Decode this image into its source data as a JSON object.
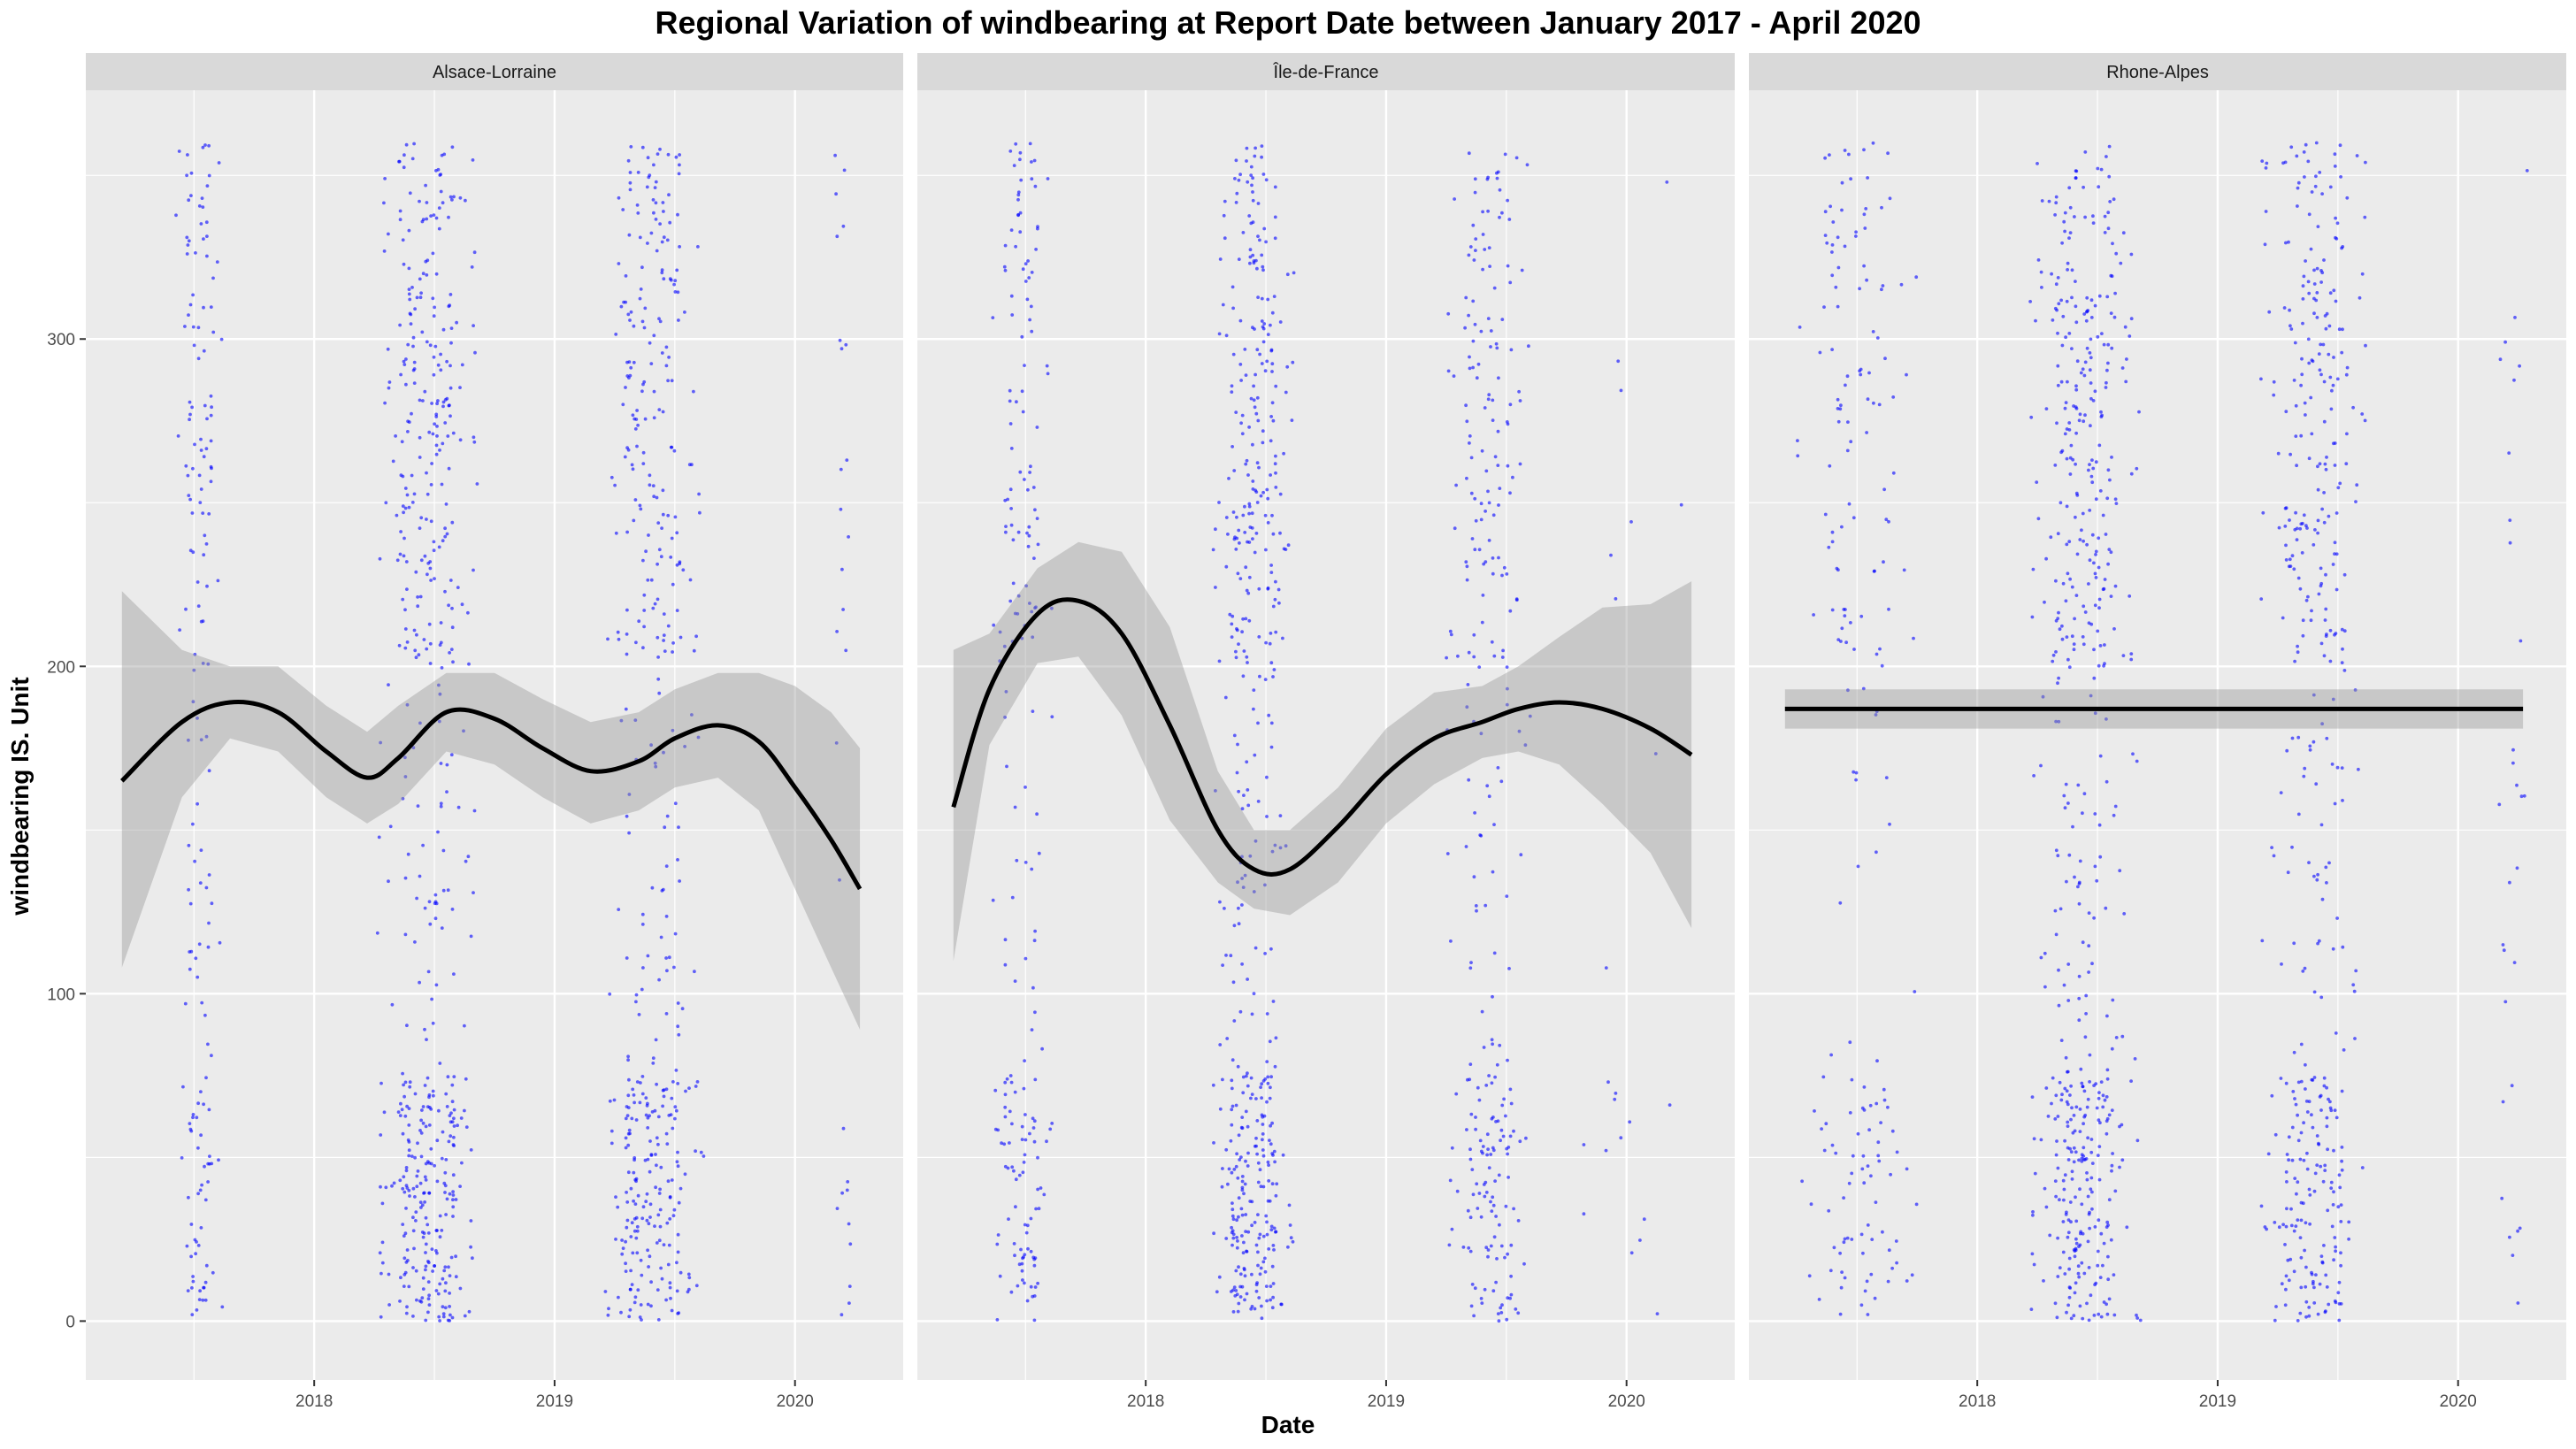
{
  "chart_data": {
    "type": "scatter",
    "title": "Regional Variation of  windbearing  at Report Date between January 2017 - April 2020",
    "xlabel": "Date",
    "ylabel": "windbearing  IS. Unit",
    "xlim": [
      2017.05,
      2020.45
    ],
    "ylim": [
      -18,
      376
    ],
    "x_ticks": [
      2018,
      2019,
      2020
    ],
    "x_tick_labels": [
      "2018",
      "2019",
      "2020"
    ],
    "y_ticks": [
      0,
      100,
      200,
      300
    ],
    "y_tick_labels": [
      "0",
      "100",
      "200",
      "300"
    ],
    "point_color": "#0000ff",
    "smooth_color": "#000000",
    "ribbon_color": "#999999",
    "panel_background": "#ebebeb",
    "strip_background": "#d9d9d9",
    "grid": true,
    "legend": "none",
    "panels": [
      {
        "name": "Alsace-Lorraine",
        "clusters": [
          {
            "x_range": [
              2017.42,
              2017.62
            ],
            "count": 170
          },
          {
            "x_range": [
              2018.26,
              2018.68
            ],
            "count": 520
          },
          {
            "x_range": [
              2019.2,
              2019.62
            ],
            "count": 430
          },
          {
            "x_range": [
              2020.14,
              2020.26
            ],
            "count": 28
          }
        ],
        "smooth": [
          {
            "x": 2017.2,
            "y": 165
          },
          {
            "x": 2017.45,
            "y": 183
          },
          {
            "x": 2017.65,
            "y": 189
          },
          {
            "x": 2017.85,
            "y": 186
          },
          {
            "x": 2018.05,
            "y": 174
          },
          {
            "x": 2018.22,
            "y": 166
          },
          {
            "x": 2018.35,
            "y": 172
          },
          {
            "x": 2018.55,
            "y": 186
          },
          {
            "x": 2018.75,
            "y": 184
          },
          {
            "x": 2018.95,
            "y": 175
          },
          {
            "x": 2019.15,
            "y": 168
          },
          {
            "x": 2019.35,
            "y": 171
          },
          {
            "x": 2019.5,
            "y": 178
          },
          {
            "x": 2019.68,
            "y": 182
          },
          {
            "x": 2019.85,
            "y": 177
          },
          {
            "x": 2020.0,
            "y": 163
          },
          {
            "x": 2020.15,
            "y": 147
          },
          {
            "x": 2020.27,
            "y": 132
          }
        ],
        "ribbon_upper": [
          223,
          205,
          200,
          200,
          188,
          180,
          188,
          198,
          198,
          190,
          183,
          186,
          193,
          198,
          198,
          194,
          186,
          175
        ],
        "ribbon_lower": [
          108,
          160,
          178,
          174,
          160,
          152,
          158,
          174,
          170,
          160,
          152,
          156,
          163,
          166,
          156,
          132,
          108,
          89
        ]
      },
      {
        "name": "Île-de-France",
        "clusters": [
          {
            "x_range": [
              2017.35,
              2017.62
            ],
            "count": 200
          },
          {
            "x_range": [
              2018.28,
              2018.62
            ],
            "count": 480
          },
          {
            "x_range": [
              2019.25,
              2019.6
            ],
            "count": 280
          },
          {
            "x_range": [
              2019.8,
              2020.28
            ],
            "count": 22
          }
        ],
        "smooth": [
          {
            "x": 2017.2,
            "y": 157
          },
          {
            "x": 2017.35,
            "y": 193
          },
          {
            "x": 2017.55,
            "y": 216
          },
          {
            "x": 2017.72,
            "y": 220
          },
          {
            "x": 2017.9,
            "y": 210
          },
          {
            "x": 2018.1,
            "y": 182
          },
          {
            "x": 2018.3,
            "y": 150
          },
          {
            "x": 2018.45,
            "y": 138
          },
          {
            "x": 2018.6,
            "y": 138
          },
          {
            "x": 2018.8,
            "y": 151
          },
          {
            "x": 2019.0,
            "y": 167
          },
          {
            "x": 2019.2,
            "y": 178
          },
          {
            "x": 2019.4,
            "y": 183
          },
          {
            "x": 2019.55,
            "y": 187
          },
          {
            "x": 2019.72,
            "y": 189
          },
          {
            "x": 2019.9,
            "y": 187
          },
          {
            "x": 2020.1,
            "y": 181
          },
          {
            "x": 2020.27,
            "y": 173
          }
        ],
        "ribbon_upper": [
          205,
          210,
          230,
          238,
          235,
          212,
          168,
          150,
          150,
          163,
          181,
          192,
          194,
          200,
          209,
          218,
          219,
          226
        ],
        "ribbon_lower": [
          110,
          176,
          201,
          203,
          185,
          153,
          134,
          126,
          124,
          134,
          152,
          164,
          172,
          174,
          170,
          158,
          143,
          120
        ]
      },
      {
        "name": "Rhone-Alpes",
        "clusters": [
          {
            "x_range": [
              2017.25,
              2017.75
            ],
            "count": 190
          },
          {
            "x_range": [
              2018.22,
              2018.68
            ],
            "count": 540
          },
          {
            "x_range": [
              2019.18,
              2019.62
            ],
            "count": 420
          },
          {
            "x_range": [
              2020.14,
              2020.3
            ],
            "count": 30
          }
        ],
        "smooth": [
          {
            "x": 2017.2,
            "y": 187
          },
          {
            "x": 2020.27,
            "y": 187
          }
        ],
        "ribbon_upper": [
          193,
          193
        ],
        "ribbon_lower": [
          181,
          181
        ]
      }
    ]
  }
}
